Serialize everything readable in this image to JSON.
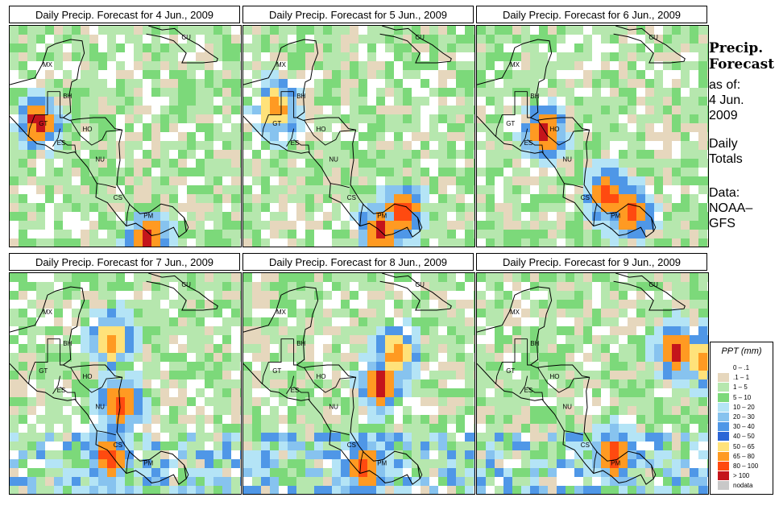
{
  "panels": [
    {
      "title": "Daily Precip. Forecast for  4 Jun., 2009",
      "hotspots": [
        {
          "lon": -91.3,
          "lat": 15.6,
          "level": 11
        },
        {
          "lon": -80.8,
          "lat": 7.0,
          "level": 11
        }
      ]
    },
    {
      "title": "Daily Precip. Forecast for  5 Jun., 2009",
      "hotspots": [
        {
          "lon": -81.0,
          "lat": 7.6,
          "level": 11
        },
        {
          "lon": -78.8,
          "lat": 9.2,
          "level": 10
        },
        {
          "lon": -90.8,
          "lat": 16.5,
          "level": 9
        }
      ]
    },
    {
      "title": "Daily Precip. Forecast for  6 Jun., 2009",
      "hotspots": [
        {
          "lon": -81.5,
          "lat": 10.1,
          "level": 10
        },
        {
          "lon": -79.3,
          "lat": 9.0,
          "level": 10
        },
        {
          "lon": -87.6,
          "lat": 14.8,
          "level": 11
        }
      ]
    },
    {
      "title": "Daily Precip. Forecast for  7 Jun., 2009",
      "hotspots": [
        {
          "lon": -83.4,
          "lat": 13.0,
          "level": 10
        },
        {
          "lon": -84.2,
          "lat": 17.7,
          "level": 9
        },
        {
          "lon": -84.6,
          "lat": 9.3,
          "level": 10
        }
      ]
    },
    {
      "title": "Daily Precip. Forecast for  8 Jun., 2009",
      "hotspots": [
        {
          "lon": -80.8,
          "lat": 14.5,
          "level": 11
        },
        {
          "lon": -79.5,
          "lat": 16.7,
          "level": 9
        },
        {
          "lon": -82.5,
          "lat": 8.3,
          "level": 10
        }
      ]
    },
    {
      "title": "Daily Precip. Forecast for  9 Jun., 2009",
      "hotspots": [
        {
          "lon": -74.9,
          "lat": 16.9,
          "level": 11
        },
        {
          "lon": -72.5,
          "lat": 16.4,
          "level": 9
        },
        {
          "lon": -81.0,
          "lat": 9.3,
          "level": 10
        }
      ]
    }
  ],
  "country_labels": [
    {
      "code": "MX",
      "lon": -90.4,
      "lat": 19.6
    },
    {
      "code": "BH",
      "lon": -88.5,
      "lat": 17.3
    },
    {
      "code": "GT",
      "lon": -90.8,
      "lat": 15.3
    },
    {
      "code": "HO",
      "lon": -86.6,
      "lat": 14.9
    },
    {
      "code": "ES",
      "lon": -89.1,
      "lat": 13.9
    },
    {
      "code": "NU",
      "lon": -85.4,
      "lat": 12.7
    },
    {
      "code": "CS",
      "lon": -83.7,
      "lat": 9.9
    },
    {
      "code": "PM",
      "lon": -80.8,
      "lat": 8.6
    },
    {
      "code": "CU",
      "lon": -77.2,
      "lat": 21.6
    }
  ],
  "side": {
    "title_line1": "Precip.",
    "title_line2": "Forecast",
    "asof_label": "as of:",
    "date_line1": "4 Jun.",
    "date_line2": "2009",
    "totals_line1": "Daily",
    "totals_line2": "Totals",
    "data_line1": "Data:",
    "data_line2": "NOAA–",
    "data_line3": "GFS"
  },
  "legend": {
    "title": "PPT (mm)",
    "items": [
      {
        "label": "0 – .1",
        "color": "#ffffff"
      },
      {
        "label": ".1 – 1",
        "color": "#e6d7bd"
      },
      {
        "label": "1 – 5",
        "color": "#b6e7ae"
      },
      {
        "label": "5 – 10",
        "color": "#7cd97a"
      },
      {
        "label": "10 – 20",
        "color": "#b4e4f6"
      },
      {
        "label": "20 – 30",
        "color": "#87c3ef"
      },
      {
        "label": "30 – 40",
        "color": "#4f97e7"
      },
      {
        "label": "40 – 50",
        "color": "#2c66d6"
      },
      {
        "label": "50 – 65",
        "color": "#ffe27a"
      },
      {
        "label": "65 – 80",
        "color": "#ff9a22"
      },
      {
        "label": "80 – 100",
        "color": "#ff4a10"
      },
      {
        "label": "> 100",
        "color": "#c4151b"
      },
      {
        "label": "nodata",
        "color": "#c8c8c8"
      }
    ]
  }
}
